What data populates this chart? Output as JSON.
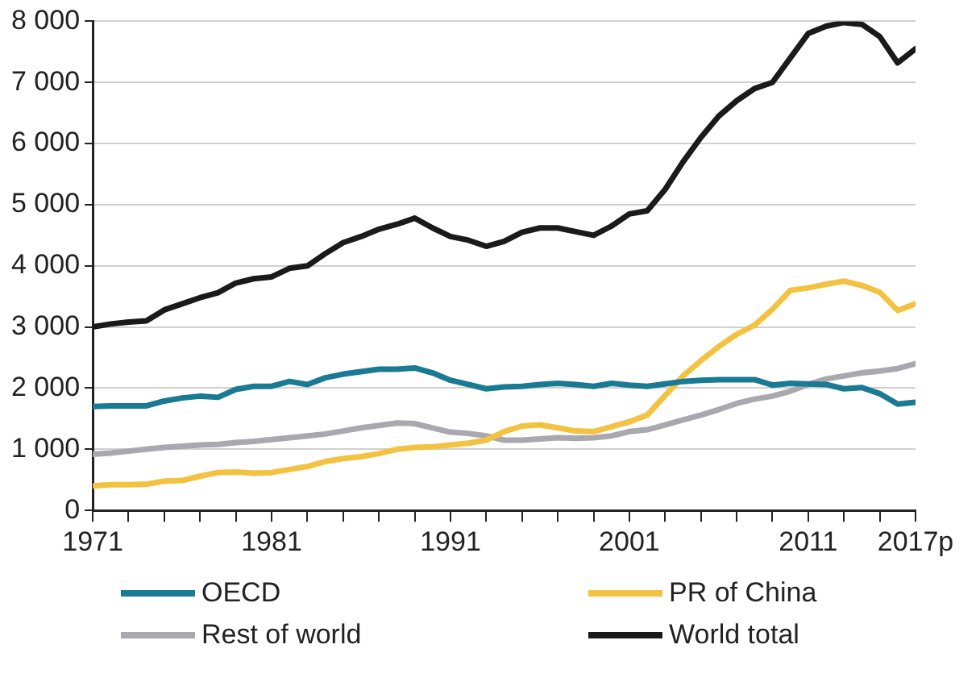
{
  "chart_data": {
    "type": "line",
    "x": [
      1971,
      1972,
      1973,
      1974,
      1975,
      1976,
      1977,
      1978,
      1979,
      1980,
      1981,
      1982,
      1983,
      1984,
      1985,
      1986,
      1987,
      1988,
      1989,
      1990,
      1991,
      1992,
      1993,
      1994,
      1995,
      1996,
      1997,
      1998,
      1999,
      2000,
      2001,
      2002,
      2003,
      2004,
      2005,
      2006,
      2007,
      2008,
      2009,
      2010,
      2011,
      2012,
      2013,
      2014,
      2015,
      2016,
      2017
    ],
    "xlim": [
      1971,
      2017
    ],
    "xticks": [
      1971,
      {
        "value": 1973,
        "label": null
      },
      {
        "value": 1975,
        "label": null
      },
      {
        "value": 1977,
        "label": null
      },
      {
        "value": 1979,
        "label": null
      },
      1981,
      {
        "value": 1983,
        "label": null
      },
      {
        "value": 1985,
        "label": null
      },
      {
        "value": 1987,
        "label": null
      },
      {
        "value": 1989,
        "label": null
      },
      1991,
      {
        "value": 1993,
        "label": null
      },
      {
        "value": 1995,
        "label": null
      },
      {
        "value": 1997,
        "label": null
      },
      {
        "value": 1999,
        "label": null
      },
      2001,
      {
        "value": 2003,
        "label": null
      },
      {
        "value": 2005,
        "label": null
      },
      {
        "value": 2007,
        "label": null
      },
      {
        "value": 2009,
        "label": null
      },
      2011,
      {
        "value": 2013,
        "label": null
      },
      {
        "value": 2015,
        "label": null
      },
      {
        "value": 2017,
        "label": "2017p"
      }
    ],
    "ylim": [
      0,
      8000
    ],
    "yticks": [
      {
        "value": 0,
        "label": "0"
      },
      {
        "value": 1000,
        "label": "1 000"
      },
      {
        "value": 2000,
        "label": "2 000"
      },
      {
        "value": 3000,
        "label": "3 000"
      },
      {
        "value": 4000,
        "label": "4 000"
      },
      {
        "value": 5000,
        "label": "5 000"
      },
      {
        "value": 6000,
        "label": "6 000"
      },
      {
        "value": 7000,
        "label": "7 000"
      },
      {
        "value": 8000,
        "label": "8 000"
      }
    ],
    "grid": "y",
    "legend": "bottom",
    "marker": "none",
    "line_style": "solid",
    "series": [
      {
        "name": "OECD",
        "color": "#1a7a94",
        "values": [
          1700,
          1710,
          1710,
          1710,
          1790,
          1840,
          1870,
          1850,
          1980,
          2030,
          2030,
          2110,
          2060,
          2170,
          2230,
          2270,
          2310,
          2310,
          2330,
          2250,
          2130,
          2060,
          1990,
          2020,
          2030,
          2060,
          2080,
          2060,
          2030,
          2080,
          2050,
          2030,
          2070,
          2110,
          2130,
          2140,
          2140,
          2140,
          2050,
          2080,
          2070,
          2060,
          1990,
          2010,
          1910,
          1740,
          1770
        ]
      },
      {
        "name": "PR of China",
        "color": "#f4c241",
        "values": [
          400,
          420,
          420,
          430,
          480,
          490,
          560,
          620,
          630,
          610,
          620,
          670,
          720,
          800,
          850,
          880,
          930,
          1000,
          1030,
          1040,
          1070,
          1100,
          1150,
          1290,
          1380,
          1400,
          1350,
          1300,
          1290,
          1370,
          1450,
          1560,
          1880,
          2200,
          2450,
          2680,
          2880,
          3030,
          3290,
          3600,
          3640,
          3700,
          3750,
          3680,
          3570,
          3270,
          3380
        ]
      },
      {
        "name": "Rest of world",
        "color": "#a8a8ae",
        "values": [
          920,
          940,
          970,
          1000,
          1030,
          1050,
          1070,
          1080,
          1110,
          1130,
          1160,
          1190,
          1220,
          1250,
          1300,
          1350,
          1390,
          1430,
          1420,
          1350,
          1280,
          1260,
          1220,
          1150,
          1150,
          1170,
          1190,
          1180,
          1190,
          1220,
          1290,
          1320,
          1400,
          1480,
          1560,
          1650,
          1750,
          1820,
          1870,
          1950,
          2060,
          2150,
          2200,
          2250,
          2280,
          2320,
          2400
        ]
      },
      {
        "name": "World total",
        "color": "#1a1a1a",
        "values": [
          3000,
          3050,
          3080,
          3100,
          3280,
          3380,
          3480,
          3560,
          3720,
          3790,
          3820,
          3960,
          4000,
          4200,
          4380,
          4480,
          4600,
          4680,
          4780,
          4620,
          4480,
          4420,
          4320,
          4400,
          4550,
          4620,
          4620,
          4560,
          4500,
          4650,
          4850,
          4900,
          5250,
          5700,
          6100,
          6450,
          6700,
          6900,
          7000,
          7400,
          7800,
          7920,
          7980,
          7950,
          7750,
          7320,
          7550
        ]
      }
    ]
  }
}
